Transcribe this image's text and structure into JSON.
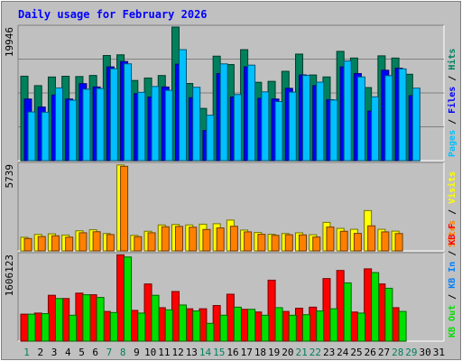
{
  "chart_data": {
    "title": "Daily usage for February 2026",
    "days": [
      "1",
      "2",
      "3",
      "4",
      "5",
      "6",
      "7",
      "8",
      "9",
      "10",
      "11",
      "12",
      "13",
      "14",
      "15",
      "16",
      "17",
      "18",
      "19",
      "20",
      "21",
      "22",
      "23",
      "24",
      "25",
      "26",
      "27",
      "28",
      "29",
      "30",
      "31"
    ],
    "weekend_days": [
      1,
      7,
      8,
      14,
      15,
      21,
      22,
      28,
      29
    ],
    "colors": {
      "background": "#c0c0c0",
      "plot_bg": "#c0c0c0",
      "title": "#0000ff",
      "weekday_label": "#000000",
      "weekend_label": "#00805c",
      "hits": "#00805c",
      "files": "#0000ff",
      "pages": "#00c0ff",
      "visits": "#ffff00",
      "sites": "#ff8000",
      "kb_in": "#0080ff",
      "kb_out": "#00e000",
      "kb_f": "#ff0000"
    },
    "panels": [
      {
        "id": "hits",
        "type": "bar",
        "max_label": "19946",
        "ymax": 19946,
        "legend": [
          {
            "text": "Hits",
            "color": "#00805c"
          },
          {
            "text": "/",
            "color": "#000000"
          },
          {
            "text": "Files",
            "color": "#0000ff"
          },
          {
            "text": "/",
            "color": "#000000"
          },
          {
            "text": "Pages",
            "color": "#00c0ff"
          }
        ],
        "series": [
          {
            "name": "Hits",
            "color": "#00805c",
            "values": [
              12610,
              11200,
              12490,
              12600,
              12560,
              12720,
              15700,
              15800,
              11970,
              12340,
              12710,
              19946,
              11520,
              7800,
              15600,
              14350,
              16570,
              11700,
              11840,
              13340,
              15910,
              12790,
              12500,
              16320,
              15320,
              10910,
              15650,
              15320,
              12900,
              null,
              null
            ]
          },
          {
            "name": "Files",
            "color": "#0000ff",
            "values": [
              9200,
              8000,
              9800,
              9200,
              11500,
              11000,
              14000,
              14800,
              10000,
              9500,
              11000,
              14400,
              9400,
              4500,
              13000,
              9500,
              14000,
              9300,
              9200,
              10800,
              12800,
              11200,
              9100,
              14000,
              13000,
              7400,
              13500,
              13800,
              9700,
              null,
              null
            ]
          },
          {
            "name": "Pages",
            "color": "#00c0ff",
            "values": [
              7270,
              7230,
              10860,
              9030,
              10670,
              10770,
              13720,
              14460,
              10200,
              11070,
              10500,
              16570,
              10950,
              6780,
              14450,
              9870,
              14260,
              10270,
              8820,
              10230,
              12720,
              11720,
              9060,
              14880,
              12500,
              9530,
              12690,
              13700,
              10830,
              null,
              null
            ]
          }
        ]
      },
      {
        "id": "visits",
        "type": "bar",
        "max_label": "5739",
        "ymax": 5739,
        "legend": [
          {
            "text": "Visits",
            "color": "#ffff00"
          },
          {
            "text": "/",
            "color": "#000000"
          },
          {
            "text": "Sites",
            "color": "#ff8000"
          }
        ],
        "series": [
          {
            "name": "Visits",
            "color": "#ffff00",
            "values": [
              900,
              1090,
              1130,
              1050,
              1330,
              1400,
              1150,
              5690,
              1030,
              1300,
              1720,
              1750,
              1720,
              1770,
              1800,
              2040,
              1380,
              1220,
              1100,
              1150,
              1200,
              1070,
              1890,
              1490,
              1430,
              2670,
              1430,
              1310,
              null,
              null,
              null
            ]
          },
          {
            "name": "Sites",
            "color": "#ff8000",
            "values": [
              820,
              950,
              1000,
              910,
              1200,
              1270,
              1080,
              5600,
              940,
              1200,
              1600,
              1620,
              1570,
              1420,
              1520,
              1630,
              1260,
              1100,
              1030,
              1070,
              1060,
              920,
              1580,
              1300,
              1160,
              1660,
              1260,
              1150,
              null,
              null,
              null
            ]
          }
        ]
      },
      {
        "id": "kbytes",
        "type": "bar",
        "max_label": "1606123",
        "ymax": 1606123,
        "legend": [
          {
            "text": "KB F",
            "color": "#ff0000"
          },
          {
            "text": "/",
            "color": "#000000"
          },
          {
            "text": "KB In",
            "color": "#0080ff"
          },
          {
            "text": "/",
            "color": "#000000"
          },
          {
            "text": "KB Out",
            "color": "#00e000"
          }
        ],
        "series": [
          {
            "name": "KB F",
            "color": "#ff0000",
            "values": [
              500000,
              520000,
              850000,
              790000,
              890000,
              860000,
              550000,
              1600000,
              570000,
              1060000,
              620000,
              920000,
              600000,
              600000,
              660000,
              870000,
              590000,
              540000,
              1130000,
              550000,
              610000,
              630000,
              1160000,
              1310000,
              540000,
              1340000,
              1060000,
              620000,
              null,
              null,
              null
            ]
          },
          {
            "name": "KB In",
            "color": "#0080ff",
            "values": [
              0,
              0,
              0,
              0,
              0,
              0,
              0,
              0,
              0,
              0,
              0,
              0,
              0,
              0,
              0,
              0,
              0,
              0,
              0,
              0,
              0,
              0,
              0,
              0,
              0,
              0,
              0,
              0,
              null,
              null,
              null
            ]
          },
          {
            "name": "KB Out",
            "color": "#00e000",
            "values": [
              500000,
              510000,
              790000,
              480000,
              860000,
              810000,
              530000,
              1560000,
              520000,
              850000,
              580000,
              670000,
              560000,
              330000,
              480000,
              630000,
              590000,
              480000,
              620000,
              480000,
              490000,
              560000,
              600000,
              1080000,
              520000,
              1270000,
              980000,
              550000,
              null,
              null,
              null
            ]
          }
        ]
      }
    ]
  }
}
